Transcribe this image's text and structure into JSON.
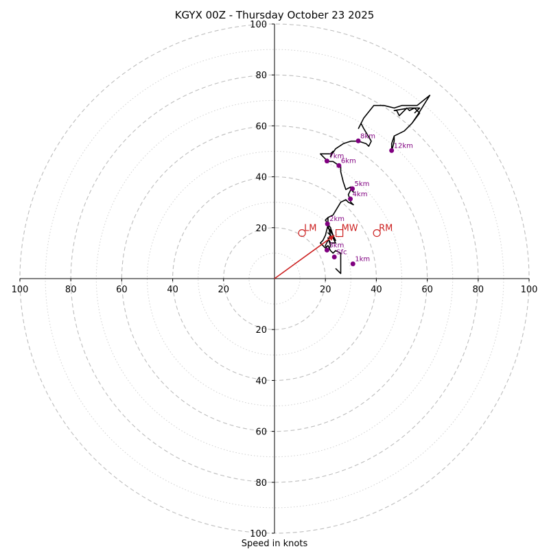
{
  "chart_data": {
    "type": "hodograph",
    "title": "KGYX 00Z - Thursday October 23 2025",
    "xlabel": "Speed in knots",
    "range": 100,
    "rings_major": [
      20,
      40,
      60,
      80,
      100
    ],
    "rings_minor": [
      10,
      30,
      50,
      70,
      90
    ],
    "ticks": [
      20,
      40,
      60,
      80,
      100
    ],
    "colors": {
      "trace": "#000000",
      "height_marker": "#800080",
      "motion": "#cc1f1f",
      "grid": "#bdbdbd"
    },
    "trace": [
      [
        24,
        4
      ],
      [
        26,
        2
      ],
      [
        26,
        10
      ],
      [
        24,
        11
      ],
      [
        23,
        10
      ],
      [
        22,
        11
      ],
      [
        21,
        13
      ],
      [
        20,
        12
      ],
      [
        18,
        14
      ],
      [
        19,
        15
      ],
      [
        20,
        17
      ],
      [
        21,
        21
      ],
      [
        21,
        24
      ],
      [
        20,
        23
      ],
      [
        22,
        20
      ],
      [
        23,
        17
      ],
      [
        22,
        19
      ],
      [
        21,
        20
      ],
      [
        23,
        17
      ],
      [
        24,
        15
      ],
      [
        21,
        18
      ],
      [
        23,
        16
      ],
      [
        24,
        14
      ],
      [
        22,
        14
      ],
      [
        21,
        16
      ],
      [
        22,
        13
      ],
      [
        21,
        11
      ],
      [
        20,
        13
      ],
      [
        22,
        17
      ],
      [
        21,
        21
      ],
      [
        21,
        24
      ],
      [
        23,
        25
      ],
      [
        26,
        30
      ],
      [
        28,
        31
      ],
      [
        29,
        30
      ],
      [
        31,
        29
      ],
      [
        30,
        30
      ],
      [
        29,
        33
      ],
      [
        30,
        35
      ],
      [
        31,
        34
      ],
      [
        30,
        36
      ],
      [
        28,
        35
      ],
      [
        27,
        38
      ],
      [
        26,
        42
      ],
      [
        26,
        44
      ],
      [
        23,
        46
      ],
      [
        21,
        46
      ],
      [
        19,
        48
      ],
      [
        18,
        49
      ],
      [
        20,
        49
      ],
      [
        22,
        49
      ],
      [
        23,
        50
      ],
      [
        22,
        48
      ],
      [
        24,
        51
      ],
      [
        27,
        53
      ],
      [
        30,
        54
      ],
      [
        33,
        54
      ],
      [
        36,
        53
      ],
      [
        37,
        52
      ],
      [
        38,
        54
      ],
      [
        35,
        59
      ],
      [
        34,
        61
      ],
      [
        33,
        59
      ],
      [
        35,
        63
      ],
      [
        39,
        68
      ],
      [
        43,
        68
      ],
      [
        47,
        67
      ],
      [
        50,
        68
      ],
      [
        56,
        68
      ],
      [
        61,
        72
      ],
      [
        56,
        64
      ],
      [
        54,
        61
      ],
      [
        51,
        58
      ],
      [
        47,
        56
      ],
      [
        47,
        54
      ],
      [
        46,
        50
      ],
      [
        46,
        53
      ],
      [
        47,
        56
      ],
      [
        51,
        58
      ],
      [
        54,
        61
      ],
      [
        57,
        65
      ],
      [
        56,
        66
      ],
      [
        55,
        67
      ],
      [
        53,
        66
      ],
      [
        52,
        67
      ],
      [
        50,
        65
      ],
      [
        49,
        64
      ],
      [
        48,
        66
      ],
      [
        47,
        66
      ],
      [
        53,
        67
      ],
      [
        57,
        67
      ],
      [
        55,
        65
      ]
    ],
    "height_markers": [
      {
        "label": "Sfc",
        "u": 23.5,
        "v": 8.5
      },
      {
        "label": "1km",
        "u": 30.8,
        "v": 5.8
      },
      {
        "label": "3km",
        "u": 20.6,
        "v": 11.2
      },
      {
        "label": "2km",
        "u": 20.8,
        "v": 21.5
      },
      {
        "label": "4km",
        "u": 29.8,
        "v": 31.3
      },
      {
        "label": "5km",
        "u": 30.6,
        "v": 35.3
      },
      {
        "label": "6km",
        "u": 25.3,
        "v": 44.4
      },
      {
        "label": "7km",
        "u": 20.6,
        "v": 46.2
      },
      {
        "label": "8km",
        "u": 32.9,
        "v": 54.1
      },
      {
        "label": "12km",
        "u": 46.0,
        "v": 50.3
      }
    ],
    "storm_motion": {
      "lm": {
        "label": "LM",
        "u": 10.8,
        "v": 17.9
      },
      "mw": {
        "label": "MW",
        "u": 25.5,
        "v": 17.9
      },
      "rm": {
        "label": "RM",
        "u": 40.2,
        "v": 17.9
      }
    },
    "bunkers_vector": {
      "u": 23.5,
      "v": 17.0
    }
  }
}
